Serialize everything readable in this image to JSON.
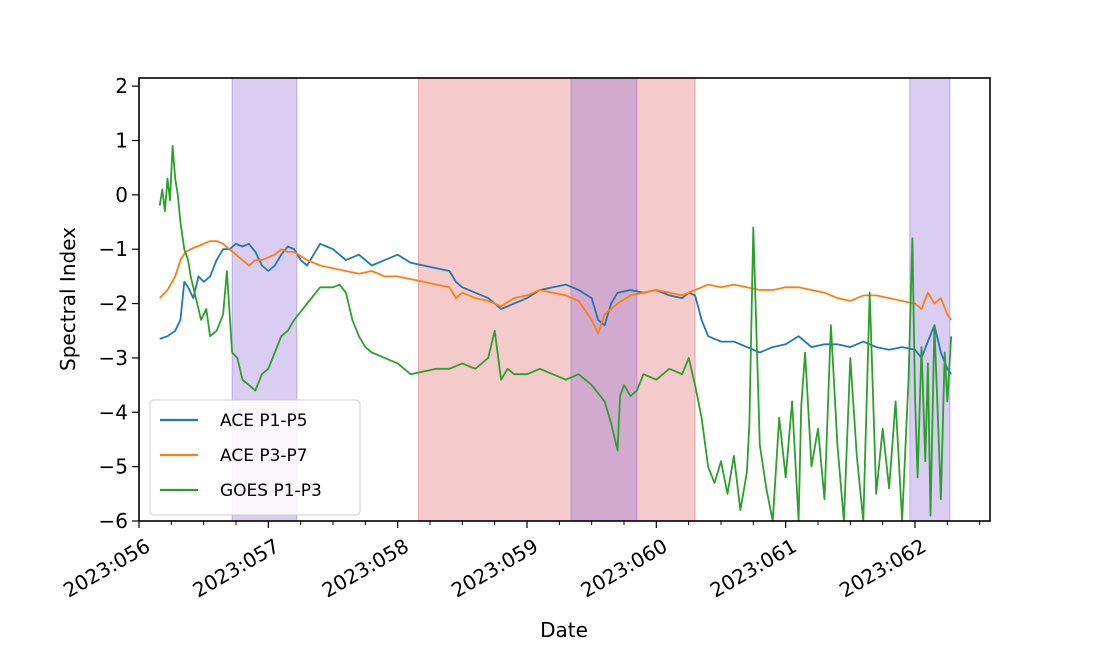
{
  "chart_data": {
    "type": "line",
    "xlabel": "Date",
    "ylabel": "Spectral Index",
    "xlim": [
      56.0,
      62.58
    ],
    "ylim": [
      -6,
      2.15
    ],
    "x_ticks": [
      56,
      57,
      58,
      59,
      60,
      61,
      62
    ],
    "x_tick_labels": [
      "2023:056",
      "2023:057",
      "2023:058",
      "2023:059",
      "2023:060",
      "2023:061",
      "2023:062"
    ],
    "y_ticks": [
      -6,
      -5,
      -4,
      -3,
      -2,
      -1,
      0,
      1,
      2
    ],
    "y_tick_labels": [
      "−6",
      "−5",
      "−4",
      "−3",
      "−2",
      "−1",
      "0",
      "1",
      "2"
    ],
    "legend_position": "lower-left",
    "grid": false,
    "shaded_regions": [
      {
        "start": 56.72,
        "end": 57.22,
        "color": "#9370db"
      },
      {
        "start": 58.16,
        "end": 60.3,
        "color": "#e06666"
      },
      {
        "start": 59.34,
        "end": 59.85,
        "color": "#9370db"
      },
      {
        "start": 61.96,
        "end": 62.27,
        "color": "#9370db"
      }
    ],
    "series": [
      {
        "name": "ACE P1-P5",
        "color": "#1f77b4",
        "x": [
          56.16,
          56.22,
          56.28,
          56.32,
          56.35,
          56.38,
          56.42,
          56.46,
          56.5,
          56.55,
          56.6,
          56.65,
          56.7,
          56.75,
          56.8,
          56.85,
          56.9,
          56.95,
          57.0,
          57.05,
          57.1,
          57.15,
          57.2,
          57.25,
          57.3,
          57.4,
          57.5,
          57.6,
          57.7,
          57.8,
          57.9,
          58.0,
          58.1,
          58.2,
          58.3,
          58.4,
          58.45,
          58.5,
          58.6,
          58.7,
          58.8,
          58.9,
          59.0,
          59.1,
          59.2,
          59.3,
          59.4,
          59.5,
          59.55,
          59.6,
          59.65,
          59.7,
          59.8,
          59.9,
          60.0,
          60.1,
          60.2,
          60.25,
          60.3,
          60.35,
          60.4,
          60.5,
          60.6,
          60.7,
          60.8,
          60.9,
          61.0,
          61.1,
          61.2,
          61.3,
          61.4,
          61.5,
          61.6,
          61.7,
          61.8,
          61.9,
          62.0,
          62.05,
          62.1,
          62.15,
          62.2,
          62.25,
          62.28
        ],
        "y": [
          -2.65,
          -2.6,
          -2.5,
          -2.3,
          -1.6,
          -1.7,
          -1.9,
          -1.5,
          -1.6,
          -1.5,
          -1.2,
          -1.0,
          -1.0,
          -0.9,
          -0.95,
          -0.9,
          -1.05,
          -1.3,
          -1.4,
          -1.3,
          -1.1,
          -0.95,
          -1.0,
          -1.2,
          -1.3,
          -0.9,
          -1.0,
          -1.2,
          -1.1,
          -1.3,
          -1.2,
          -1.1,
          -1.25,
          -1.3,
          -1.35,
          -1.4,
          -1.6,
          -1.7,
          -1.8,
          -1.9,
          -2.1,
          -2.0,
          -1.9,
          -1.75,
          -1.7,
          -1.65,
          -1.75,
          -1.9,
          -2.3,
          -2.4,
          -2.0,
          -1.8,
          -1.75,
          -1.8,
          -1.75,
          -1.85,
          -1.9,
          -1.8,
          -1.85,
          -2.3,
          -2.6,
          -2.7,
          -2.7,
          -2.8,
          -2.9,
          -2.8,
          -2.75,
          -2.6,
          -2.8,
          -2.75,
          -2.75,
          -2.8,
          -2.7,
          -2.8,
          -2.85,
          -2.8,
          -2.85,
          -3.0,
          -2.7,
          -2.4,
          -2.9,
          -3.2,
          -3.3
        ]
      },
      {
        "name": "ACE P3-P7",
        "color": "#ff7f0e",
        "x": [
          56.16,
          56.22,
          56.28,
          56.32,
          56.36,
          56.4,
          56.45,
          56.5,
          56.55,
          56.6,
          56.65,
          56.7,
          56.75,
          56.8,
          56.85,
          56.9,
          56.95,
          57.0,
          57.05,
          57.1,
          57.15,
          57.2,
          57.3,
          57.4,
          57.5,
          57.6,
          57.7,
          57.8,
          57.9,
          58.0,
          58.1,
          58.2,
          58.3,
          58.4,
          58.45,
          58.5,
          58.6,
          58.7,
          58.8,
          58.9,
          59.0,
          59.1,
          59.2,
          59.3,
          59.4,
          59.5,
          59.55,
          59.6,
          59.7,
          59.8,
          59.9,
          60.0,
          60.1,
          60.2,
          60.3,
          60.4,
          60.5,
          60.6,
          60.7,
          60.8,
          60.9,
          61.0,
          61.1,
          61.2,
          61.3,
          61.4,
          61.5,
          61.6,
          61.7,
          61.8,
          61.9,
          62.0,
          62.05,
          62.1,
          62.15,
          62.2,
          62.25,
          62.28
        ],
        "y": [
          -1.9,
          -1.75,
          -1.5,
          -1.2,
          -1.05,
          -1.0,
          -0.95,
          -0.9,
          -0.85,
          -0.85,
          -0.9,
          -1.0,
          -1.1,
          -1.2,
          -1.3,
          -1.2,
          -1.2,
          -1.15,
          -1.1,
          -1.0,
          -1.05,
          -1.05,
          -1.2,
          -1.3,
          -1.35,
          -1.4,
          -1.45,
          -1.4,
          -1.5,
          -1.5,
          -1.55,
          -1.6,
          -1.65,
          -1.7,
          -1.9,
          -1.8,
          -1.9,
          -1.95,
          -2.05,
          -1.9,
          -1.85,
          -1.75,
          -1.8,
          -1.85,
          -1.95,
          -2.3,
          -2.55,
          -2.2,
          -2.0,
          -1.85,
          -1.8,
          -1.75,
          -1.8,
          -1.85,
          -1.75,
          -1.65,
          -1.7,
          -1.65,
          -1.7,
          -1.75,
          -1.75,
          -1.7,
          -1.7,
          -1.75,
          -1.8,
          -1.9,
          -1.95,
          -1.85,
          -1.85,
          -1.9,
          -1.95,
          -2.0,
          -2.1,
          -1.8,
          -2.0,
          -1.9,
          -2.2,
          -2.3
        ]
      },
      {
        "name": "GOES P1-P3",
        "color": "#2ca02c",
        "x": [
          56.16,
          56.18,
          56.2,
          56.22,
          56.24,
          56.26,
          56.28,
          56.3,
          56.32,
          56.35,
          56.38,
          56.4,
          56.44,
          56.48,
          56.52,
          56.55,
          56.6,
          56.65,
          56.68,
          56.72,
          56.76,
          56.8,
          56.85,
          56.9,
          56.95,
          57.0,
          57.05,
          57.1,
          57.15,
          57.2,
          57.3,
          57.4,
          57.5,
          57.55,
          57.6,
          57.65,
          57.7,
          57.75,
          57.8,
          57.9,
          58.0,
          58.1,
          58.2,
          58.3,
          58.4,
          58.5,
          58.6,
          58.7,
          58.75,
          58.8,
          58.85,
          58.9,
          59.0,
          59.1,
          59.2,
          59.3,
          59.4,
          59.5,
          59.6,
          59.65,
          59.7,
          59.72,
          59.75,
          59.8,
          59.85,
          59.9,
          60.0,
          60.1,
          60.2,
          60.25,
          60.3,
          60.35,
          60.4,
          60.45,
          60.5,
          60.55,
          60.6,
          60.65,
          60.7,
          60.72,
          60.75,
          60.8,
          60.85,
          60.9,
          60.95,
          61.0,
          61.05,
          61.1,
          61.12,
          61.15,
          61.2,
          61.25,
          61.3,
          61.35,
          61.4,
          61.45,
          61.5,
          61.55,
          61.6,
          61.65,
          61.7,
          61.75,
          61.8,
          61.85,
          61.9,
          61.95,
          61.98,
          62.0,
          62.02,
          62.05,
          62.08,
          62.1,
          62.12,
          62.15,
          62.18,
          62.2,
          62.23,
          62.25,
          62.28
        ],
        "y": [
          -0.2,
          0.1,
          -0.3,
          0.3,
          -0.1,
          0.9,
          0.3,
          0.0,
          -0.5,
          -1.0,
          -1.2,
          -1.5,
          -1.9,
          -2.3,
          -2.1,
          -2.6,
          -2.5,
          -2.2,
          -1.4,
          -2.9,
          -3.0,
          -3.4,
          -3.5,
          -3.6,
          -3.3,
          -3.2,
          -2.9,
          -2.6,
          -2.5,
          -2.3,
          -2.0,
          -1.7,
          -1.7,
          -1.65,
          -1.8,
          -2.3,
          -2.6,
          -2.8,
          -2.9,
          -3.0,
          -3.1,
          -3.3,
          -3.25,
          -3.2,
          -3.2,
          -3.1,
          -3.2,
          -3.0,
          -2.5,
          -3.4,
          -3.2,
          -3.3,
          -3.3,
          -3.2,
          -3.3,
          -3.4,
          -3.3,
          -3.5,
          -3.8,
          -4.2,
          -4.7,
          -3.7,
          -3.5,
          -3.7,
          -3.6,
          -3.3,
          -3.4,
          -3.2,
          -3.3,
          -3.0,
          -3.5,
          -4.1,
          -5.0,
          -5.3,
          -4.9,
          -5.5,
          -4.8,
          -5.8,
          -5.1,
          -4.2,
          -0.6,
          -4.6,
          -5.4,
          -6.0,
          -4.1,
          -5.2,
          -3.8,
          -6.0,
          -3.9,
          -2.9,
          -5.0,
          -4.3,
          -5.6,
          -2.4,
          -4.6,
          -6.0,
          -3.0,
          -4.8,
          -6.0,
          -1.8,
          -5.5,
          -4.3,
          -5.4,
          -3.8,
          -6.0,
          -3.4,
          -0.8,
          -3.7,
          -5.2,
          -2.8,
          -4.9,
          -3.1,
          -5.9,
          -2.4,
          -4.3,
          -5.6,
          -2.9,
          -3.8,
          -2.6
        ]
      }
    ]
  }
}
